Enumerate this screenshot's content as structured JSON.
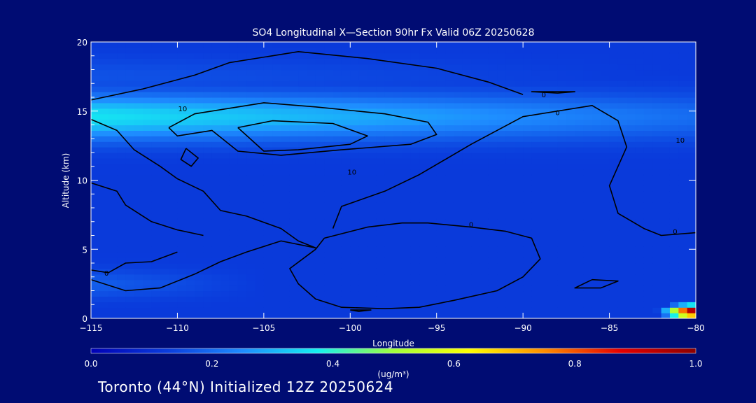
{
  "chart_data": {
    "type": "heatmap",
    "title": "SO4 Longitudinal X—Section 90hr  Fx Valid 06Z 20250628",
    "xlabel": "Longitude",
    "ylabel": "Altitude (km)",
    "xlim": [
      -115,
      -80
    ],
    "ylim": [
      0,
      20
    ],
    "x_ticks": [
      -115,
      -110,
      -105,
      -100,
      -95,
      -90,
      -85,
      -80
    ],
    "x_tick_labels": [
      "−115",
      "−110",
      "−105",
      "−100",
      "−95",
      "−90",
      "−85",
      "−80"
    ],
    "y_ticks": [
      0,
      5,
      10,
      15,
      20
    ],
    "y_tick_labels": [
      "0",
      "5",
      "10",
      "15",
      "20"
    ],
    "colorbar": {
      "min": 0.0,
      "max": 1.0,
      "ticks": [
        0.0,
        0.2,
        0.4,
        0.6,
        0.8,
        1.0
      ],
      "tick_labels": [
        "0.0",
        "0.2",
        "0.4",
        "0.6",
        "0.8",
        "1.0"
      ],
      "units": "(ug/m³)",
      "colors": [
        "#0000b4",
        "#0a3cdc",
        "#1e8cff",
        "#14f0f0",
        "#a0ff3c",
        "#ffff00",
        "#ff8c00",
        "#e60000",
        "#8b0000"
      ]
    },
    "fields": {
      "background_value": 0.12,
      "bands": [
        {
          "alt_center": 14.6,
          "alt_width": 1.6,
          "lon_range": [
            -115,
            -80
          ],
          "value_west": 0.36,
          "value_east": 0.2
        },
        {
          "alt_center": 17.5,
          "alt_width": 1.4,
          "lon_range": [
            -115,
            -80
          ],
          "value_west": 0.16,
          "value_east": 0.12
        },
        {
          "alt_center": 2.5,
          "alt_width": 1.0,
          "lon_range": [
            -115,
            -105
          ],
          "value_west": 0.18,
          "value_east": 0.12
        }
      ],
      "hotspot": {
        "lon": -80,
        "alt": 0.5,
        "value": 1.0
      }
    },
    "contours": [
      {
        "level": 10,
        "points": [
          [
            -115,
            15.8
          ],
          [
            -112,
            16.6
          ],
          [
            -109,
            17.6
          ],
          [
            -107,
            18.5
          ],
          [
            -103,
            19.3
          ],
          [
            -99,
            18.8
          ],
          [
            -95,
            18.1
          ],
          [
            -92,
            17.1
          ],
          [
            -90,
            16.2
          ]
        ]
      },
      {
        "level": 10,
        "points": [
          [
            -110.5,
            13.8
          ],
          [
            -109,
            14.8
          ],
          [
            -105,
            15.6
          ],
          [
            -102,
            15.3
          ],
          [
            -98,
            14.8
          ],
          [
            -95.5,
            14.2
          ],
          [
            -95,
            13.3
          ],
          [
            -96.5,
            12.6
          ],
          [
            -100.5,
            12.2
          ],
          [
            -104,
            11.8
          ],
          [
            -106.5,
            12.1
          ],
          [
            -108,
            13.6
          ],
          [
            -110,
            13.2
          ],
          [
            -110.5,
            13.8
          ]
        ]
      },
      {
        "level": 10,
        "points": [
          [
            -106.5,
            13.8
          ],
          [
            -104.5,
            14.3
          ],
          [
            -101,
            14.1
          ],
          [
            -99,
            13.2
          ],
          [
            -100,
            12.6
          ],
          [
            -103,
            12.2
          ],
          [
            -105,
            12.1
          ],
          [
            -106.5,
            13.8
          ]
        ]
      },
      {
        "level": 10,
        "points": [
          [
            -109.5,
            12.3
          ],
          [
            -108.8,
            11.6
          ],
          [
            -109.2,
            11
          ],
          [
            -109.8,
            11.5
          ],
          [
            -109.5,
            12.3
          ]
        ]
      },
      {
        "level": 0,
        "points": [
          [
            -115,
            14.4
          ],
          [
            -113.5,
            13.6
          ],
          [
            -112.5,
            12.2
          ],
          [
            -111,
            11
          ],
          [
            -110,
            10.1
          ],
          [
            -108.5,
            9.2
          ],
          [
            -107.5,
            7.8
          ],
          [
            -106,
            7.4
          ],
          [
            -104,
            6.5
          ],
          [
            -103,
            5.6
          ],
          [
            -102,
            5.1
          ],
          [
            -104,
            5.6
          ],
          [
            -106,
            4.8
          ],
          [
            -107.5,
            4.1
          ],
          [
            -109,
            3.2
          ],
          [
            -111,
            2.2
          ],
          [
            -113,
            2
          ],
          [
            -115,
            2.8
          ]
        ]
      },
      {
        "level": 0,
        "points": [
          [
            -115,
            9.8
          ],
          [
            -113.5,
            9.2
          ],
          [
            -113,
            8.2
          ],
          [
            -111.5,
            7
          ],
          [
            -110,
            6.4
          ],
          [
            -108.5,
            6
          ]
        ]
      },
      {
        "level": 0,
        "points": [
          [
            -110,
            4.8
          ],
          [
            -111.5,
            4.1
          ],
          [
            -113,
            4
          ],
          [
            -114,
            3.3
          ],
          [
            -115,
            3.5
          ]
        ]
      },
      {
        "level": 0,
        "points": [
          [
            -101,
            6.5
          ],
          [
            -100.5,
            8.1
          ],
          [
            -98,
            9.2
          ],
          [
            -96,
            10.4
          ],
          [
            -93,
            12.6
          ],
          [
            -90,
            14.6
          ],
          [
            -86,
            15.4
          ],
          [
            -84.5,
            14.3
          ],
          [
            -84,
            12.4
          ],
          [
            -85,
            9.6
          ],
          [
            -84.5,
            7.6
          ],
          [
            -83,
            6.5
          ],
          [
            -82,
            6
          ],
          [
            -80,
            6.2
          ]
        ]
      },
      {
        "level": 0,
        "points": [
          [
            -101.5,
            5.8
          ],
          [
            -99,
            6.6
          ],
          [
            -97,
            6.9
          ],
          [
            -95.5,
            6.9
          ],
          [
            -93,
            6.6
          ],
          [
            -91,
            6.3
          ],
          [
            -89.5,
            5.8
          ],
          [
            -89,
            4.3
          ],
          [
            -90,
            3
          ],
          [
            -91.5,
            2
          ],
          [
            -94,
            1.3
          ],
          [
            -96,
            0.8
          ],
          [
            -98,
            0.7
          ],
          [
            -100.5,
            0.8
          ],
          [
            -102,
            1.4
          ],
          [
            -103,
            2.5
          ],
          [
            -103.5,
            3.6
          ],
          [
            -102,
            5
          ],
          [
            -101.5,
            5.8
          ]
        ]
      },
      {
        "level": 0,
        "points": [
          [
            -88,
            16.3
          ],
          [
            -87,
            16.4
          ],
          [
            -89.5,
            16.4
          ],
          [
            -88,
            16.3
          ]
        ]
      },
      {
        "level": 0,
        "points": [
          [
            -86,
            2.8
          ],
          [
            -84.5,
            2.7
          ],
          [
            -85.5,
            2.2
          ],
          [
            -87,
            2.2
          ],
          [
            -86,
            2.8
          ]
        ]
      },
      {
        "level": 0,
        "points": [
          [
            -100,
            0.6
          ],
          [
            -98.8,
            0.6
          ],
          [
            -99.5,
            0.5
          ],
          [
            -100,
            0.6
          ]
        ]
      }
    ],
    "contour_labels": [
      {
        "text": "10",
        "x": -109.7,
        "y": 15.2
      },
      {
        "text": "10",
        "x": -99.9,
        "y": 10.6
      },
      {
        "text": "0",
        "x": -88.8,
        "y": 16.2
      },
      {
        "text": "0",
        "x": -88,
        "y": 14.9
      },
      {
        "text": "0",
        "x": -93,
        "y": 6.8
      },
      {
        "text": "0",
        "x": -114.1,
        "y": 3.3
      },
      {
        "text": "0",
        "x": -81.2,
        "y": 6.3
      },
      {
        "text": "10",
        "x": -80.9,
        "y": 12.9
      }
    ]
  },
  "footer": "Toronto (44°N) Initialized 12Z 20250624"
}
